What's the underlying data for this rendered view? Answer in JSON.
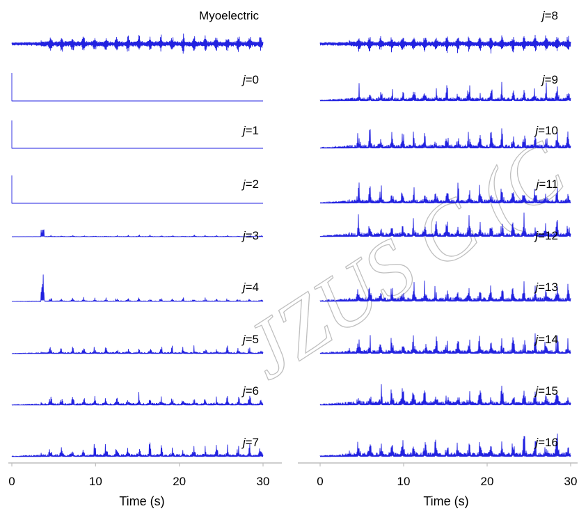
{
  "chart_data": {
    "type": "line",
    "watermark": "JZUS C (C",
    "series_color": "#2222e0",
    "panels": [
      {
        "xlabel": "Time (s)",
        "xlim": [
          0,
          30
        ],
        "xticks": [
          "0",
          "10",
          "20",
          "30"
        ],
        "traces": [
          {
            "label": "Myoelectric",
            "kind": "myo",
            "onset": 3.5
          },
          {
            "label_var": "j",
            "label_val": "=0",
            "kind": "spike",
            "onset": 0
          },
          {
            "label_var": "j",
            "label_val": "=1",
            "kind": "spike",
            "onset": 0
          },
          {
            "label_var": "j",
            "label_val": "=2",
            "kind": "spike",
            "onset": 0
          },
          {
            "label_var": "j",
            "label_val": "=3",
            "kind": "low",
            "level": 0.08,
            "onset": 3.5
          },
          {
            "label_var": "j",
            "label_val": "=4",
            "kind": "low",
            "level": 0.18,
            "onset": 3.5
          },
          {
            "label_var": "j",
            "label_val": "=5",
            "kind": "burst",
            "level": 0.35,
            "onset": 3.5
          },
          {
            "label_var": "j",
            "label_val": "=6",
            "kind": "burst",
            "level": 0.5,
            "onset": 3.5
          },
          {
            "label_var": "j",
            "label_val": "=7",
            "kind": "burst",
            "level": 0.6,
            "onset": 3.5
          }
        ]
      },
      {
        "xlabel": "Time (s)",
        "xlim": [
          0,
          30
        ],
        "xticks": [
          "0",
          "10",
          "20",
          "30"
        ],
        "traces": [
          {
            "label_var": "j",
            "label_val": "=8",
            "kind": "myo",
            "onset": 3.5
          },
          {
            "label_var": "j",
            "label_val": "=9",
            "kind": "burst",
            "level": 0.8,
            "onset": 3.5
          },
          {
            "label_var": "j",
            "label_val": "=10",
            "kind": "burst",
            "level": 0.9,
            "onset": 3.5
          },
          {
            "label_var": "j",
            "label_val": "=11",
            "kind": "burst",
            "level": 0.9,
            "onset": 3.5
          },
          {
            "label_var": "j",
            "label_val": "=12",
            "kind": "burst",
            "level": 0.95,
            "onset": 3.5
          },
          {
            "label_var": "j",
            "label_val": "=13",
            "kind": "burst",
            "level": 0.95,
            "onset": 3.5
          },
          {
            "label_var": "j",
            "label_val": "=14",
            "kind": "burst",
            "level": 0.9,
            "onset": 3.5
          },
          {
            "label_var": "j",
            "label_val": "=15",
            "kind": "burst",
            "level": 0.95,
            "onset": 3.5
          },
          {
            "label_var": "j",
            "label_val": "=16",
            "kind": "burst",
            "level": 1.0,
            "onset": 3.5
          }
        ]
      }
    ]
  }
}
